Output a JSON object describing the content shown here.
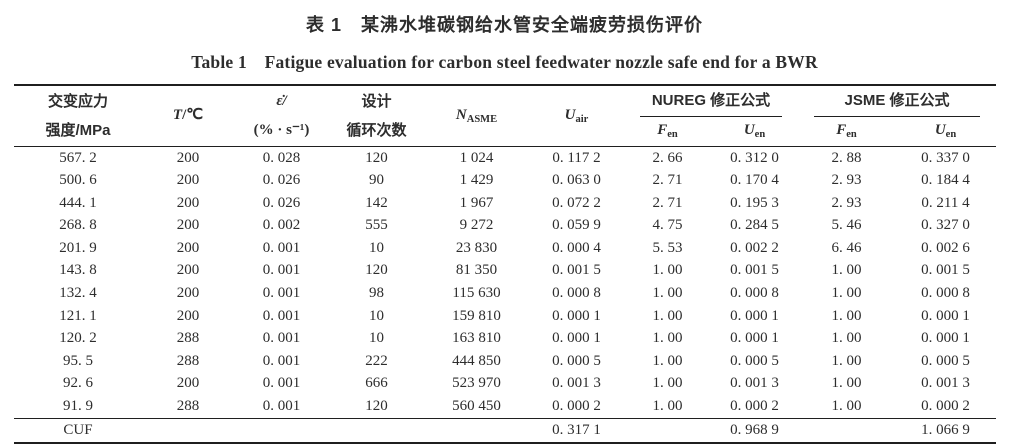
{
  "title_zh": "表 1　某沸水堆碳钢给水管安全端疲劳损伤评价",
  "title_en": "Table 1　Fatigue evaluation for carbon steel feedwater nozzle safe end for a BWR",
  "table": {
    "headers": {
      "stress": {
        "line1": "交变应力",
        "line2": "强度/MPa"
      },
      "temperature": {
        "symbol": "T",
        "rest": "/℃"
      },
      "strain_rate": {
        "line1": "ε̇/",
        "line2": "(% · s⁻¹)"
      },
      "design_cycles": {
        "line1": "设计",
        "line2": "循环次数"
      },
      "n_asme": {
        "main": "N",
        "sub": "ASME"
      },
      "u_air": {
        "main": "U",
        "sub": "air"
      },
      "nureg_group": "NUREG 修正公式",
      "jsme_group": "JSME 修正公式",
      "f_en": {
        "main": "F",
        "sub": "en"
      },
      "u_en": {
        "main": "U",
        "sub": "en"
      }
    },
    "rows": [
      [
        "567. 2",
        "200",
        "0. 028",
        "120",
        "1 024",
        "0. 117 2",
        "2. 66",
        "0. 312 0",
        "2. 88",
        "0. 337 0"
      ],
      [
        "500. 6",
        "200",
        "0. 026",
        "90",
        "1 429",
        "0. 063 0",
        "2. 71",
        "0. 170 4",
        "2. 93",
        "0. 184 4"
      ],
      [
        "444. 1",
        "200",
        "0. 026",
        "142",
        "1 967",
        "0. 072 2",
        "2. 71",
        "0. 195 3",
        "2. 93",
        "0. 211 4"
      ],
      [
        "268. 8",
        "200",
        "0. 002",
        "555",
        "9 272",
        "0. 059 9",
        "4. 75",
        "0. 284 5",
        "5. 46",
        "0. 327 0"
      ],
      [
        "201. 9",
        "200",
        "0. 001",
        "10",
        "23 830",
        "0. 000 4",
        "5. 53",
        "0. 002 2",
        "6. 46",
        "0. 002 6"
      ],
      [
        "143. 8",
        "200",
        "0. 001",
        "120",
        "81 350",
        "0. 001 5",
        "1. 00",
        "0. 001 5",
        "1. 00",
        "0. 001 5"
      ],
      [
        "132. 4",
        "200",
        "0. 001",
        "98",
        "115 630",
        "0. 000 8",
        "1. 00",
        "0. 000 8",
        "1. 00",
        "0. 000 8"
      ],
      [
        "121. 1",
        "200",
        "0. 001",
        "10",
        "159 810",
        "0. 000 1",
        "1. 00",
        "0. 000 1",
        "1. 00",
        "0. 000 1"
      ],
      [
        "120. 2",
        "288",
        "0. 001",
        "10",
        "163 810",
        "0. 000 1",
        "1. 00",
        "0. 000 1",
        "1. 00",
        "0. 000 1"
      ],
      [
        "95. 5",
        "288",
        "0. 001",
        "222",
        "444 850",
        "0. 000 5",
        "1. 00",
        "0. 000 5",
        "1. 00",
        "0. 000 5"
      ],
      [
        "92. 6",
        "200",
        "0. 001",
        "666",
        "523 970",
        "0. 001 3",
        "1. 00",
        "0. 001 3",
        "1. 00",
        "0. 001 3"
      ],
      [
        "91. 9",
        "288",
        "0. 001",
        "120",
        "560 450",
        "0. 000 2",
        "1. 00",
        "0. 000 2",
        "1. 00",
        "0. 000 2"
      ]
    ],
    "footer": {
      "label": "CUF",
      "u_air": "0. 317 1",
      "nureg_u_en": "0. 968 9",
      "jsme_u_en": "1. 066 9"
    }
  }
}
